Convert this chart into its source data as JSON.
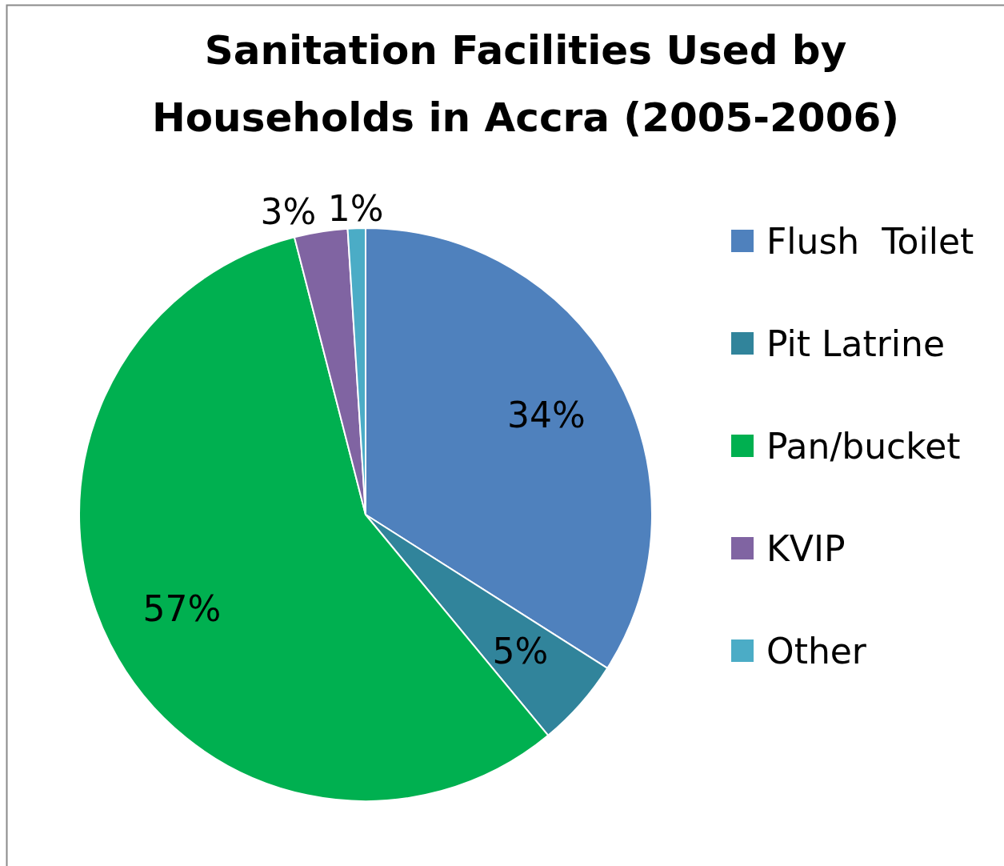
{
  "chart_data": {
    "type": "pie",
    "title": "Sanitation Facilities Used by Households in Accra (2005-2006)",
    "categories": [
      "Flush  Toilet",
      "Pit Latrine",
      "Pan/bucket",
      "KVIP",
      "Other"
    ],
    "values": [
      34,
      5,
      57,
      3,
      1
    ],
    "colors": [
      "#4f81bd",
      "#31849b",
      "#00b050",
      "#8064a2",
      "#4bacc6"
    ],
    "value_labels": [
      "34%",
      "5%",
      "57%",
      "3%",
      "1%"
    ],
    "legend": "right"
  }
}
